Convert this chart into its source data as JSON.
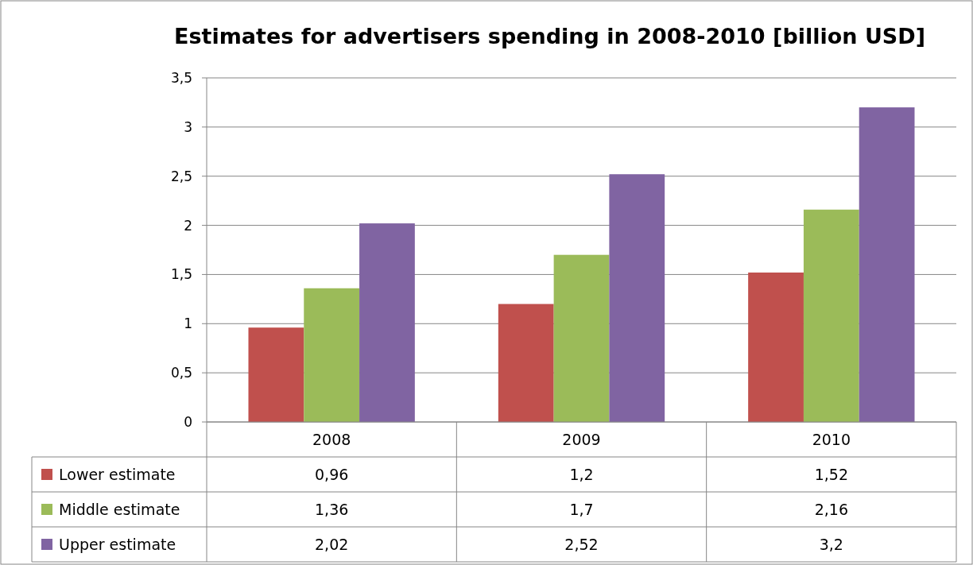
{
  "chart_data": {
    "type": "bar",
    "title": "Estimates for advertisers spending in 2008-2010 [billion USD]",
    "categories": [
      "2008",
      "2009",
      "2010"
    ],
    "series": [
      {
        "name": "Lower estimate",
        "color": "#c0504d",
        "values": [
          0.96,
          1.2,
          1.52
        ],
        "value_labels": [
          "0,96",
          "1,2",
          "1,52"
        ]
      },
      {
        "name": "Middle estimate",
        "color": "#9bbb59",
        "values": [
          1.36,
          1.7,
          2.16
        ],
        "value_labels": [
          "1,36",
          "1,7",
          "2,16"
        ]
      },
      {
        "name": "Upper estimate",
        "color": "#8064a2",
        "values": [
          2.02,
          2.52,
          3.2
        ],
        "value_labels": [
          "2,02",
          "2,52",
          "3,2"
        ]
      }
    ],
    "ylim": [
      0,
      3.5
    ],
    "yticks": [
      0,
      {
        "value": 0.5,
        "label": "0,5"
      },
      1,
      {
        "value": 1.5,
        "label": "1,5"
      },
      2,
      {
        "value": 2.5,
        "label": "2,5"
      },
      3,
      {
        "value": 3.5,
        "label": "3,5"
      }
    ],
    "grid": "y",
    "legend": "bottom left"
  }
}
